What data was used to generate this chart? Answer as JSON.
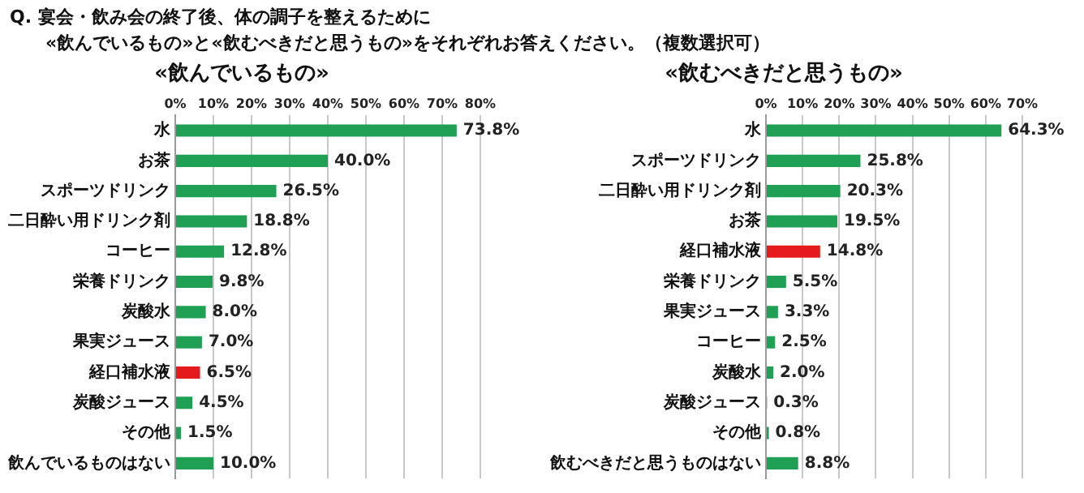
{
  "chart_data": [
    {
      "type": "bar",
      "orientation": "horizontal",
      "title": "«飲んでいるもの»",
      "annotations": [
        "Q.  宴会・飲み会の終了後、体の調子を整えるために",
        "«飲んでいるもの»と«飲むべきだと思うもの»をそれぞれお答えください。（複数選択可）"
      ],
      "categories": [
        "水",
        "お茶",
        "スポーツドリンク",
        "二日酔い用ドリンク剤",
        "コーヒー",
        "栄養ドリンク",
        "炭酸水",
        "果実ジュース",
        "経口補水液",
        "炭酸ジュース",
        "その他",
        "飲んでいるものはない"
      ],
      "values": [
        73.8,
        40.0,
        26.5,
        18.8,
        12.8,
        9.8,
        8.0,
        7.0,
        6.5,
        4.5,
        1.5,
        10.0
      ],
      "value_labels": [
        "73.8%",
        "40.0%",
        "26.5%",
        "18.8%",
        "12.8%",
        "9.8%",
        "8.0%",
        "7.0%",
        "6.5%",
        "4.5%",
        "1.5%",
        "10.0%"
      ],
      "colors": [
        "#1fa055",
        "#1fa055",
        "#1fa055",
        "#1fa055",
        "#1fa055",
        "#1fa055",
        "#1fa055",
        "#1fa055",
        "#e41a1c",
        "#1fa055",
        "#1fa055",
        "#1fa055"
      ],
      "xlim": [
        0,
        80
      ],
      "xticks": [
        {
          "value": 0,
          "label": "0%"
        },
        {
          "value": 10,
          "label": "10%"
        },
        {
          "value": 20,
          "label": "20%"
        },
        {
          "value": 30,
          "label": "30%"
        },
        {
          "value": 40,
          "label": "40%"
        },
        {
          "value": 50,
          "label": "50%"
        },
        {
          "value": 60,
          "label": "60%"
        },
        {
          "value": 70,
          "label": "70%"
        },
        {
          "value": 80,
          "label": "80%"
        }
      ],
      "grid": "x",
      "legend": false
    },
    {
      "type": "bar",
      "orientation": "horizontal",
      "title": "«飲むべきだと思うもの»",
      "categories": [
        "水",
        "スポーツドリンク",
        "二日酔い用ドリンク剤",
        "お茶",
        "経口補水液",
        "栄養ドリンク",
        "果実ジュース",
        "コーヒー",
        "炭酸水",
        "炭酸ジュース",
        "その他",
        "飲むべきだと思うものはない"
      ],
      "values": [
        64.3,
        25.8,
        20.3,
        19.5,
        14.8,
        5.5,
        3.3,
        2.5,
        2.0,
        0.3,
        0.8,
        8.8
      ],
      "value_labels": [
        "64.3%",
        "25.8%",
        "20.3%",
        "19.5%",
        "14.8%",
        "5.5%",
        "3.3%",
        "2.5%",
        "2.0%",
        "0.3%",
        "0.8%",
        "8.8%"
      ],
      "colors": [
        "#1fa055",
        "#1fa055",
        "#1fa055",
        "#1fa055",
        "#e41a1c",
        "#1fa055",
        "#1fa055",
        "#1fa055",
        "#1fa055",
        "#1fa055",
        "#1fa055",
        "#1fa055"
      ],
      "xlim": [
        0,
        70
      ],
      "xticks": [
        {
          "value": 0,
          "label": "0%"
        },
        {
          "value": 10,
          "label": "10%"
        },
        {
          "value": 20,
          "label": "20%"
        },
        {
          "value": 30,
          "label": "30%"
        },
        {
          "value": 40,
          "label": "40%"
        },
        {
          "value": 50,
          "label": "50%"
        },
        {
          "value": 60,
          "label": "60%"
        },
        {
          "value": 70,
          "label": "70%"
        }
      ],
      "grid": "x",
      "legend": false
    }
  ]
}
